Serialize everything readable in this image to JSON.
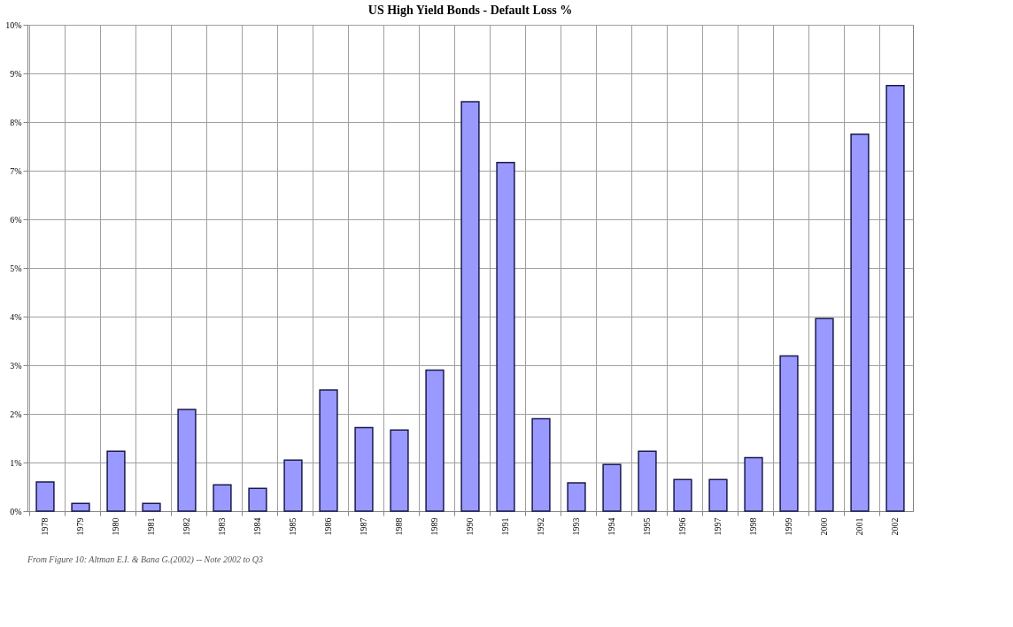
{
  "chart_data": {
    "type": "bar",
    "title": "US High Yield Bonds - Default Loss %",
    "categories": [
      "1978",
      "1979",
      "1980",
      "1981",
      "1982",
      "1983",
      "1984",
      "1985",
      "1986",
      "1987",
      "1988",
      "1989",
      "1990",
      "1991",
      "1992",
      "1993",
      "1994",
      "1995",
      "1996",
      "1997",
      "1998",
      "1999",
      "2000",
      "2001",
      "2002"
    ],
    "values": [
      0.6,
      0.16,
      1.23,
      0.16,
      2.09,
      0.54,
      0.47,
      1.05,
      2.49,
      1.72,
      1.67,
      2.9,
      8.42,
      7.17,
      1.9,
      0.58,
      0.96,
      1.23,
      0.65,
      0.65,
      1.1,
      3.19,
      3.96,
      7.75,
      8.75
    ],
    "color": "#9999ff",
    "ylim": [
      0,
      10
    ],
    "yticks": [
      {
        "value": 0,
        "label": "0%"
      },
      {
        "value": 1,
        "label": "1%"
      },
      {
        "value": 2,
        "label": "2%"
      },
      {
        "value": 3,
        "label": "3%"
      },
      {
        "value": 4,
        "label": "4%"
      },
      {
        "value": 5,
        "label": "5%"
      },
      {
        "value": 6,
        "label": "6%"
      },
      {
        "value": 7,
        "label": "7%"
      },
      {
        "value": 8,
        "label": "8%"
      },
      {
        "value": 9,
        "label": "9%"
      },
      {
        "value": 10,
        "label": "10%"
      }
    ],
    "grid": true,
    "annotations": [
      "From Figure 10: Altman E.I. & Bana G.(2002)   -- Note 2002 to Q3"
    ]
  }
}
